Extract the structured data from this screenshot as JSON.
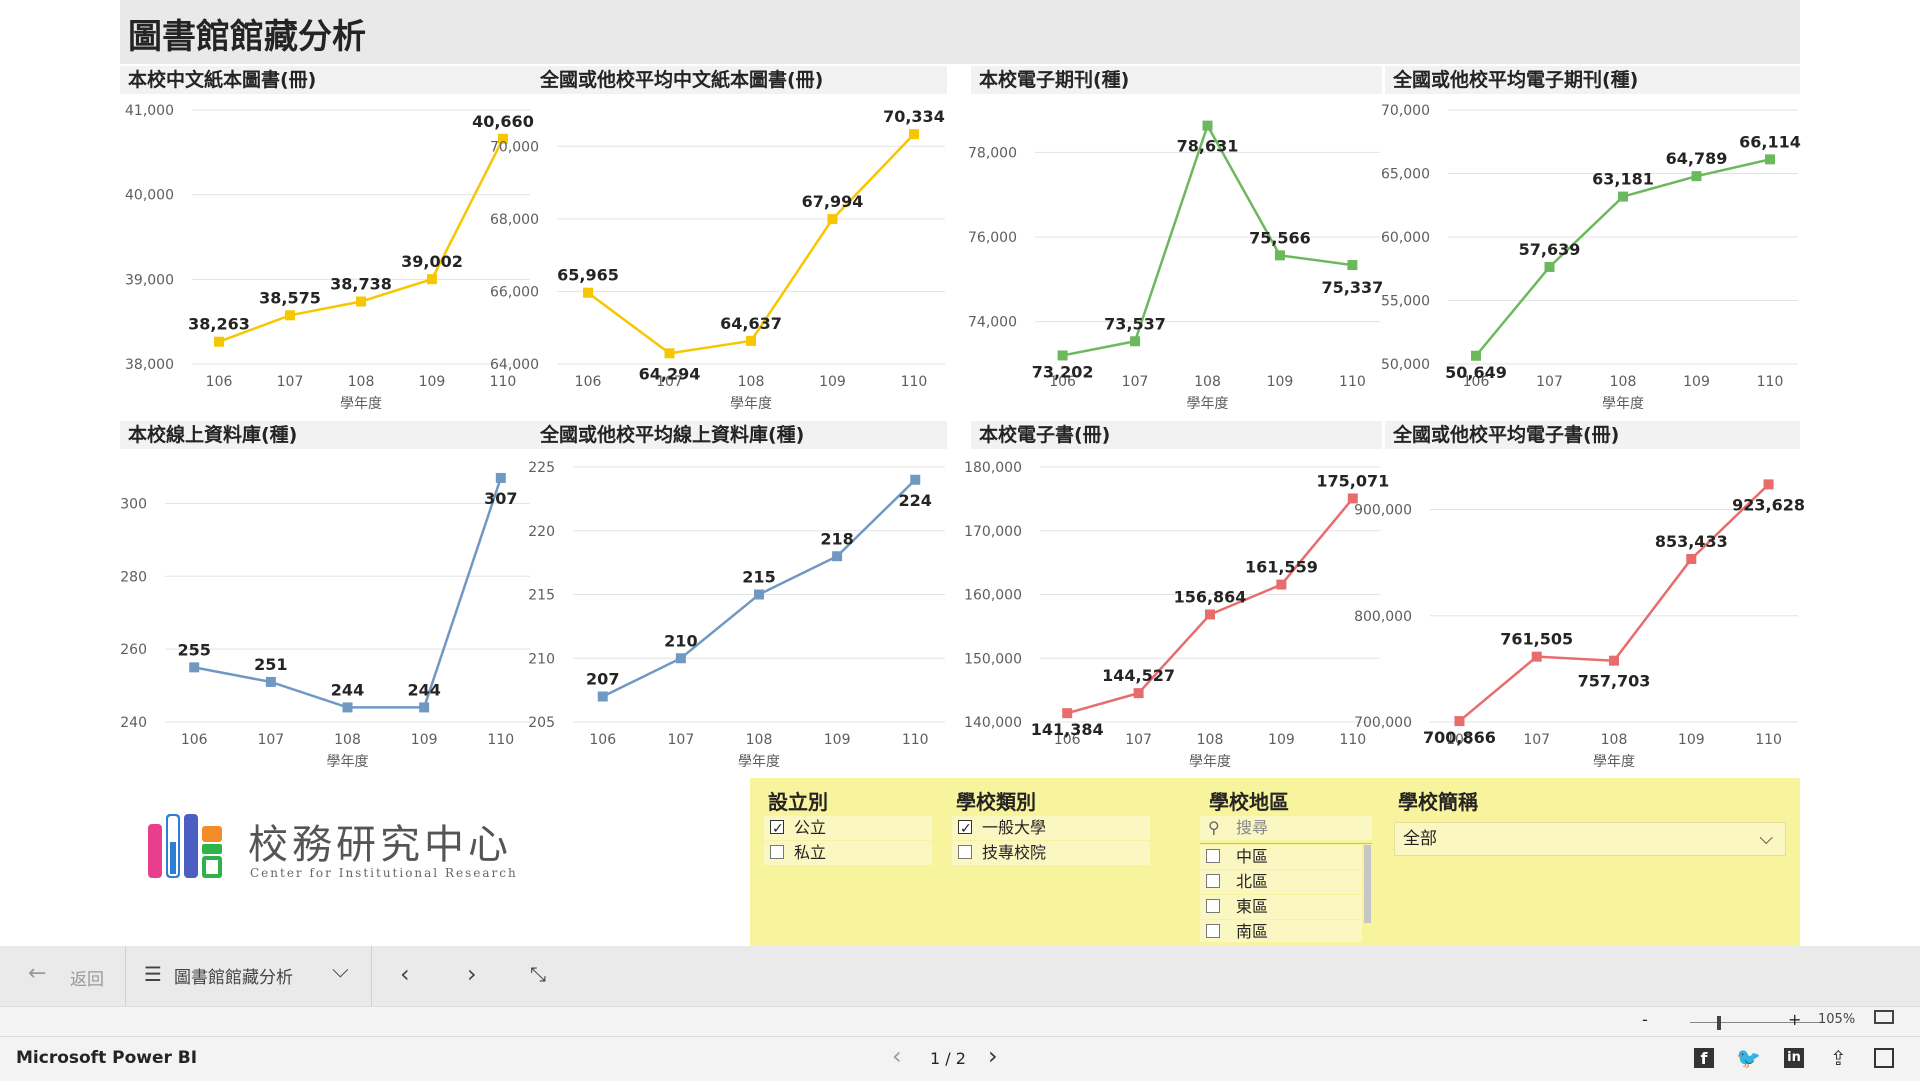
{
  "report": {
    "title": "圖書館館藏分析"
  },
  "colors": {
    "yellow": "#f6c600",
    "green": "#6cb85c",
    "blue": "#6f99c3",
    "red": "#e86c6c"
  },
  "charts": [
    {
      "id": "c1",
      "title": "本校中文紙本圖書(冊)",
      "type": "line",
      "color": "yellow",
      "categories": [
        "106",
        "107",
        "108",
        "109",
        "110"
      ],
      "values": [
        38263,
        38575,
        38738,
        39002,
        40660
      ],
      "labels": [
        "38,263",
        "38,575",
        "38,738",
        "39,002",
        "40,660"
      ],
      "ylim": [
        38000,
        41000
      ],
      "yticks": [
        38000,
        39000,
        40000,
        41000
      ],
      "yticklabels": [
        "38,000",
        "39,000",
        "40,000",
        "41,000"
      ],
      "xlabel": "學年度"
    },
    {
      "id": "c2",
      "title": "全國或他校平均中文紙本圖書(冊)",
      "type": "line",
      "color": "yellow",
      "categories": [
        "106",
        "107",
        "108",
        "109",
        "110"
      ],
      "values": [
        65965,
        64294,
        64637,
        67994,
        70334
      ],
      "labels": [
        "65,965",
        "64,294",
        "64,637",
        "67,994",
        "70,334"
      ],
      "ylim": [
        64000,
        71000
      ],
      "yticks": [
        64000,
        66000,
        68000,
        70000
      ],
      "yticklabels": [
        "64,000",
        "66,000",
        "68,000",
        "70,000"
      ],
      "xlabel": "學年度"
    },
    {
      "id": "c3",
      "title": "本校電子期刊(種)",
      "type": "line",
      "color": "green",
      "categories": [
        "106",
        "107",
        "108",
        "109",
        "110"
      ],
      "values": [
        73202,
        73537,
        78631,
        75566,
        75337
      ],
      "labels": [
        "73,202",
        "73,537",
        "78,631",
        "75,566",
        "75,337"
      ],
      "ylim": [
        73000,
        79000
      ],
      "yticks": [
        74000,
        76000,
        78000
      ],
      "yticklabels": [
        "74,000",
        "76,000",
        "78,000"
      ],
      "xlabel": "學年度"
    },
    {
      "id": "c4",
      "title": "全國或他校平均電子期刊(種)",
      "type": "line",
      "color": "green",
      "categories": [
        "106",
        "107",
        "108",
        "109",
        "110"
      ],
      "values": [
        50649,
        57639,
        63181,
        64789,
        66114
      ],
      "labels": [
        "50,649",
        "57,639",
        "63,181",
        "64,789",
        "66,114"
      ],
      "ylim": [
        50000,
        70000
      ],
      "yticks": [
        50000,
        55000,
        60000,
        65000,
        70000
      ],
      "yticklabels": [
        "50,000",
        "55,000",
        "60,000",
        "65,000",
        "70,000"
      ],
      "xlabel": "學年度"
    },
    {
      "id": "c5",
      "title": "本校線上資料庫(種)",
      "type": "line",
      "color": "blue",
      "categories": [
        "106",
        "107",
        "108",
        "109",
        "110"
      ],
      "values": [
        255,
        251,
        244,
        244,
        307
      ],
      "labels": [
        "255",
        "251",
        "244",
        "244",
        "307"
      ],
      "ylim": [
        240,
        310
      ],
      "yticks": [
        240,
        260,
        280,
        300
      ],
      "yticklabels": [
        "240",
        "260",
        "280",
        "300"
      ],
      "xlabel": "學年度"
    },
    {
      "id": "c6",
      "title": "全國或他校平均線上資料庫(種)",
      "type": "line",
      "color": "blue",
      "categories": [
        "106",
        "107",
        "108",
        "109",
        "110"
      ],
      "values": [
        207,
        210,
        215,
        218,
        224
      ],
      "labels": [
        "207",
        "210",
        "215",
        "218",
        "224"
      ],
      "ylim": [
        205,
        225
      ],
      "yticks": [
        205,
        210,
        215,
        220,
        225
      ],
      "yticklabels": [
        "205",
        "210",
        "215",
        "220",
        "225"
      ],
      "xlabel": "學年度"
    },
    {
      "id": "c7",
      "title": "本校電子書(冊)",
      "type": "line",
      "color": "red",
      "categories": [
        "106",
        "107",
        "108",
        "109",
        "110"
      ],
      "values": [
        141384,
        144527,
        156864,
        161559,
        175071
      ],
      "labels": [
        "141,384",
        "144,527",
        "156,864",
        "161,559",
        "175,071"
      ],
      "ylim": [
        140000,
        180000
      ],
      "yticks": [
        140000,
        150000,
        160000,
        170000,
        180000
      ],
      "yticklabels": [
        "140,000",
        "150,000",
        "160,000",
        "170,000",
        "180,000"
      ],
      "xlabel": "學年度"
    },
    {
      "id": "c8",
      "title": "全國或他校平均電子書(冊)",
      "type": "line",
      "color": "red",
      "categories": [
        "106",
        "107",
        "108",
        "109",
        "110"
      ],
      "values": [
        700866,
        761505,
        757703,
        853433,
        923628
      ],
      "labels": [
        "700,866",
        "761,505",
        "757,703",
        "853,433",
        "923,628"
      ],
      "ylim": [
        700000,
        940000
      ],
      "yticks": [
        700000,
        800000,
        900000
      ],
      "yticklabels": [
        "700,000",
        "800,000",
        "900,000"
      ],
      "xlabel": "學年度"
    }
  ],
  "logo": {
    "title": "校務研究中心",
    "subtitle": "Center for Institutional Research"
  },
  "slicers": {
    "setup": {
      "title": "設立別",
      "options": [
        {
          "label": "公立",
          "checked": true
        },
        {
          "label": "私立",
          "checked": false
        }
      ]
    },
    "type": {
      "title": "學校類別",
      "options": [
        {
          "label": "一般大學",
          "checked": true
        },
        {
          "label": "技專校院",
          "checked": false
        }
      ]
    },
    "region": {
      "title": "學校地區",
      "search_placeholder": "搜尋",
      "options": [
        {
          "label": "中區",
          "checked": false
        },
        {
          "label": "北區",
          "checked": false
        },
        {
          "label": "東區",
          "checked": false
        },
        {
          "label": "南區",
          "checked": false
        }
      ]
    },
    "school": {
      "title": "學校簡稱",
      "selected": "全部"
    }
  },
  "nav": {
    "back": "返回",
    "page_name": "圖書館館藏分析"
  },
  "status": {
    "zoom": "105%"
  },
  "footer": {
    "app": "Microsoft Power BI",
    "page_indicator": "1 / 2"
  }
}
